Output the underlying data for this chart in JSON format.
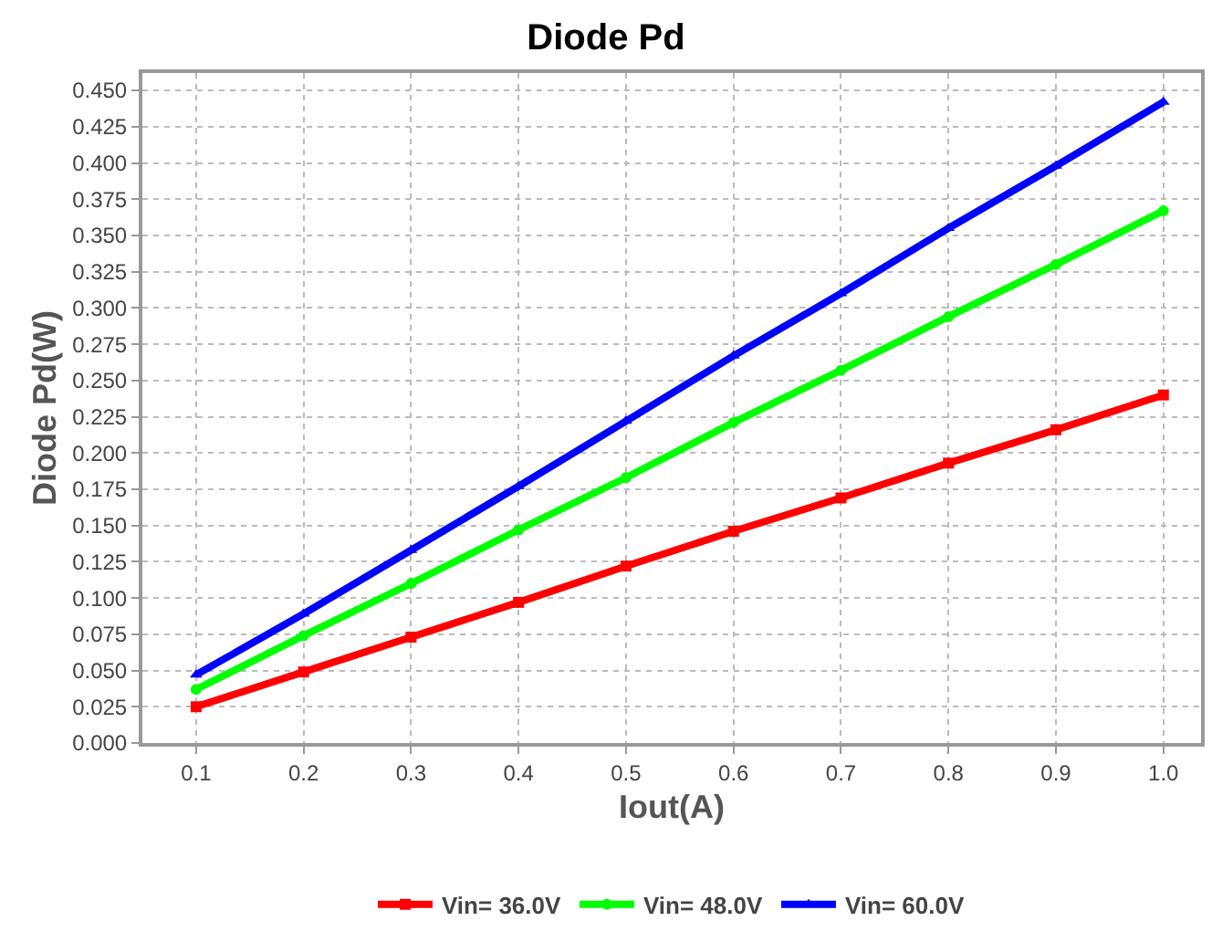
{
  "chart_data": {
    "type": "line",
    "title": "Diode Pd",
    "xlabel": "Iout(A)",
    "ylabel": "Diode Pd(W)",
    "x": [
      0.1,
      0.2,
      0.3,
      0.4,
      0.5,
      0.6,
      0.7,
      0.8,
      0.9,
      1.0
    ],
    "series": [
      {
        "name": "Vin= 36.0V",
        "color": "#ff0000",
        "marker": "square",
        "values": [
          0.025,
          0.049,
          0.073,
          0.097,
          0.122,
          0.146,
          0.169,
          0.193,
          0.216,
          0.24
        ]
      },
      {
        "name": "Vin= 48.0V",
        "color": "#00ff00",
        "marker": "circle",
        "values": [
          0.037,
          0.074,
          0.11,
          0.147,
          0.183,
          0.221,
          0.257,
          0.294,
          0.33,
          0.367
        ]
      },
      {
        "name": "Vin= 60.0V",
        "color": "#0000ff",
        "marker": "triangle",
        "values": [
          0.047,
          0.089,
          0.133,
          0.177,
          0.222,
          0.267,
          0.31,
          0.355,
          0.398,
          0.442
        ]
      }
    ],
    "xlim": [
      0.05,
      1.035
    ],
    "ylim": [
      0,
      0.462
    ],
    "xticks": [
      {
        "value": 0.1,
        "label": "0.1"
      },
      {
        "value": 0.2,
        "label": "0.2"
      },
      {
        "value": 0.3,
        "label": "0.3"
      },
      {
        "value": 0.4,
        "label": "0.4"
      },
      {
        "value": 0.5,
        "label": "0.5"
      },
      {
        "value": 0.6,
        "label": "0.6"
      },
      {
        "value": 0.7,
        "label": "0.7"
      },
      {
        "value": 0.8,
        "label": "0.8"
      },
      {
        "value": 0.9,
        "label": "0.9"
      },
      {
        "value": 1.0,
        "label": "1.0"
      }
    ],
    "yticks": [
      {
        "value": 0,
        "label": "0.000"
      },
      {
        "value": 0.025,
        "label": "0.025"
      },
      {
        "value": 0.05,
        "label": "0.050"
      },
      {
        "value": 0.075,
        "label": "0.075"
      },
      {
        "value": 0.1,
        "label": "0.100"
      },
      {
        "value": 0.125,
        "label": "0.125"
      },
      {
        "value": 0.15,
        "label": "0.150"
      },
      {
        "value": 0.175,
        "label": "0.175"
      },
      {
        "value": 0.2,
        "label": "0.200"
      },
      {
        "value": 0.225,
        "label": "0.225"
      },
      {
        "value": 0.25,
        "label": "0.250"
      },
      {
        "value": 0.275,
        "label": "0.275"
      },
      {
        "value": 0.3,
        "label": "0.300"
      },
      {
        "value": 0.325,
        "label": "0.325"
      },
      {
        "value": 0.35,
        "label": "0.350"
      },
      {
        "value": 0.375,
        "label": "0.375"
      },
      {
        "value": 0.4,
        "label": "0.400"
      },
      {
        "value": 0.425,
        "label": "0.425"
      },
      {
        "value": 0.45,
        "label": "0.450"
      }
    ],
    "grid": true,
    "legend": "bottom",
    "line_style": "solid"
  }
}
